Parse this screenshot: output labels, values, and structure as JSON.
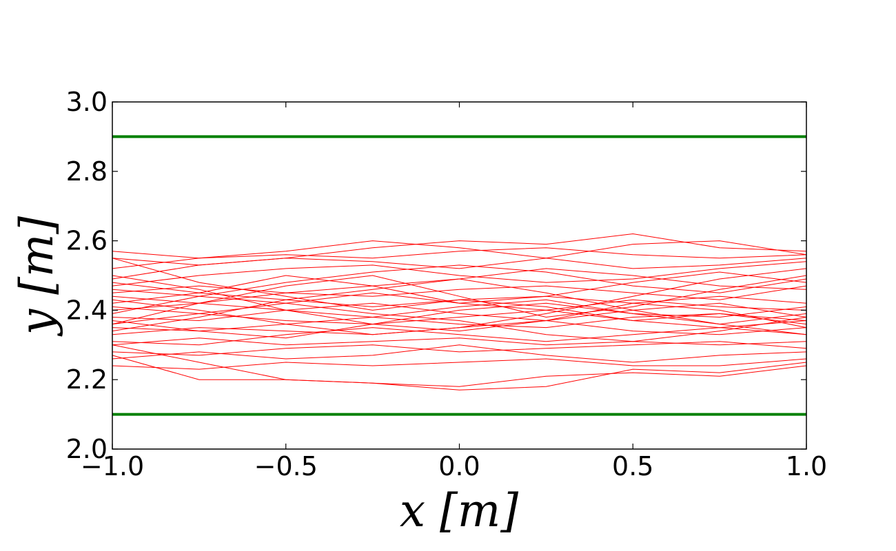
{
  "chart_data": {
    "type": "line",
    "title": "",
    "xlabel": "x [m]",
    "ylabel": "y [m]",
    "xlim": [
      -1.0,
      1.0
    ],
    "ylim": [
      2.0,
      3.0
    ],
    "x_ticks": [
      "−1.0",
      "−0.5",
      "0.0",
      "0.5",
      "1.0"
    ],
    "y_ticks": [
      "2.0",
      "2.2",
      "2.4",
      "2.6",
      "2.8",
      "3.0"
    ],
    "grid": false,
    "legend": "none",
    "colors": {
      "boundary": "#008000",
      "trajectory": "#ff0000",
      "frame": "#000000"
    },
    "boundaries": [
      {
        "y": 2.9
      },
      {
        "y": 2.1
      }
    ],
    "x": [
      -1.0,
      -0.75,
      -0.5,
      -0.25,
      0.0,
      0.25,
      0.5,
      0.75,
      1.0
    ],
    "trajectories": [
      [
        2.57,
        2.55,
        2.56,
        2.55,
        2.57,
        2.58,
        2.56,
        2.55,
        2.56
      ],
      [
        2.55,
        2.53,
        2.55,
        2.58,
        2.6,
        2.59,
        2.62,
        2.58,
        2.57
      ],
      [
        2.52,
        2.55,
        2.57,
        2.6,
        2.58,
        2.55,
        2.52,
        2.53,
        2.55
      ],
      [
        2.49,
        2.53,
        2.55,
        2.54,
        2.52,
        2.55,
        2.59,
        2.6,
        2.56
      ],
      [
        2.47,
        2.5,
        2.52,
        2.53,
        2.5,
        2.48,
        2.49,
        2.52,
        2.54
      ],
      [
        2.46,
        2.44,
        2.48,
        2.51,
        2.53,
        2.51,
        2.47,
        2.45,
        2.49
      ],
      [
        2.45,
        2.47,
        2.45,
        2.47,
        2.49,
        2.52,
        2.5,
        2.47,
        2.46
      ],
      [
        2.44,
        2.42,
        2.45,
        2.44,
        2.46,
        2.47,
        2.45,
        2.43,
        2.47
      ],
      [
        2.42,
        2.45,
        2.43,
        2.41,
        2.43,
        2.44,
        2.42,
        2.44,
        2.42
      ],
      [
        2.41,
        2.39,
        2.42,
        2.45,
        2.42,
        2.4,
        2.43,
        2.41,
        2.4
      ],
      [
        2.4,
        2.42,
        2.4,
        2.38,
        2.41,
        2.43,
        2.39,
        2.38,
        2.41
      ],
      [
        2.38,
        2.37,
        2.4,
        2.42,
        2.39,
        2.37,
        2.4,
        2.42,
        2.38
      ],
      [
        2.36,
        2.39,
        2.37,
        2.36,
        2.38,
        2.4,
        2.37,
        2.35,
        2.37
      ],
      [
        2.35,
        2.34,
        2.36,
        2.38,
        2.36,
        2.35,
        2.38,
        2.39,
        2.36
      ],
      [
        2.33,
        2.35,
        2.34,
        2.33,
        2.35,
        2.37,
        2.34,
        2.33,
        2.35
      ],
      [
        2.31,
        2.3,
        2.33,
        2.35,
        2.33,
        2.31,
        2.33,
        2.35,
        2.33
      ],
      [
        2.3,
        2.32,
        2.3,
        2.31,
        2.32,
        2.3,
        2.31,
        2.3,
        2.31
      ],
      [
        2.28,
        2.27,
        2.29,
        2.3,
        2.28,
        2.29,
        2.3,
        2.31,
        2.29
      ],
      [
        2.26,
        2.28,
        2.26,
        2.27,
        2.3,
        2.27,
        2.25,
        2.27,
        2.28
      ],
      [
        2.24,
        2.23,
        2.25,
        2.24,
        2.25,
        2.26,
        2.24,
        2.24,
        2.26
      ],
      [
        2.3,
        2.25,
        2.2,
        2.19,
        2.18,
        2.21,
        2.22,
        2.21,
        2.24
      ],
      [
        2.27,
        2.2,
        2.2,
        2.19,
        2.17,
        2.18,
        2.23,
        2.22,
        2.25
      ],
      [
        2.55,
        2.48,
        2.44,
        2.4,
        2.43,
        2.41,
        2.37,
        2.39,
        2.37
      ],
      [
        2.36,
        2.42,
        2.47,
        2.5,
        2.44,
        2.38,
        2.41,
        2.46,
        2.5
      ],
      [
        2.5,
        2.46,
        2.4,
        2.36,
        2.34,
        2.37,
        2.42,
        2.4,
        2.35
      ],
      [
        2.34,
        2.38,
        2.43,
        2.46,
        2.49,
        2.45,
        2.4,
        2.36,
        2.33
      ],
      [
        2.43,
        2.4,
        2.36,
        2.33,
        2.35,
        2.39,
        2.44,
        2.49,
        2.52
      ],
      [
        2.39,
        2.44,
        2.42,
        2.39,
        2.37,
        2.33,
        2.31,
        2.34,
        2.38
      ],
      [
        2.48,
        2.45,
        2.5,
        2.47,
        2.42,
        2.44,
        2.48,
        2.51,
        2.48
      ],
      [
        2.37,
        2.34,
        2.32,
        2.36,
        2.4,
        2.42,
        2.39,
        2.36,
        2.39
      ]
    ]
  }
}
